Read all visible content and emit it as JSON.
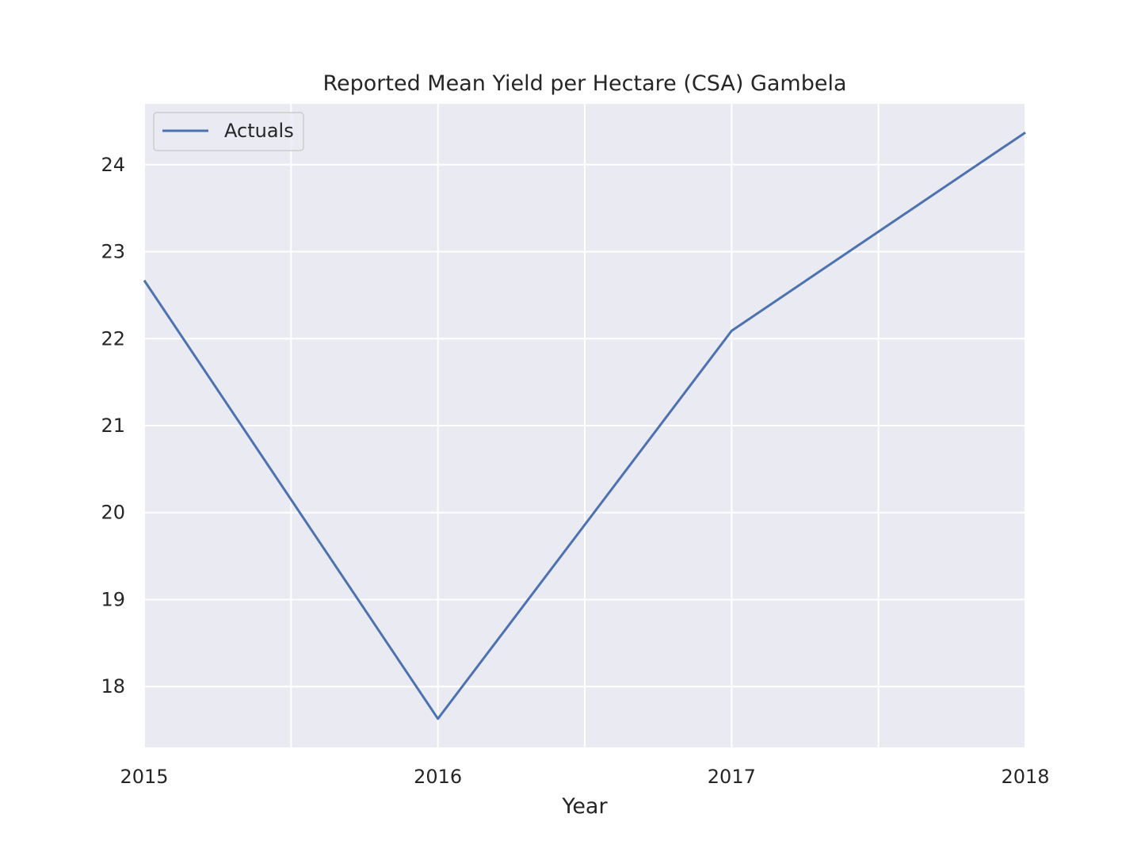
{
  "chart_data": {
    "type": "line",
    "title": "Reported Mean Yield per Hectare (CSA) Gambela",
    "xlabel": "Year",
    "ylabel": "",
    "x": [
      2015,
      2016,
      2017,
      2018
    ],
    "x_tick_labels": [
      "2015",
      "2016",
      "2017",
      "2018"
    ],
    "y_ticks": [
      18,
      19,
      20,
      21,
      22,
      23,
      24
    ],
    "xlim": [
      2015,
      2018
    ],
    "ylim": [
      17.3,
      24.7
    ],
    "grid": true,
    "legend_position": "upper-left",
    "series": [
      {
        "name": "Actuals",
        "values": [
          22.67,
          17.63,
          22.09,
          24.37
        ],
        "color": "#4c72b0"
      }
    ],
    "colors": {
      "plot_background": "#eaeaf2",
      "grid": "#ffffff",
      "text": "#262626"
    }
  }
}
